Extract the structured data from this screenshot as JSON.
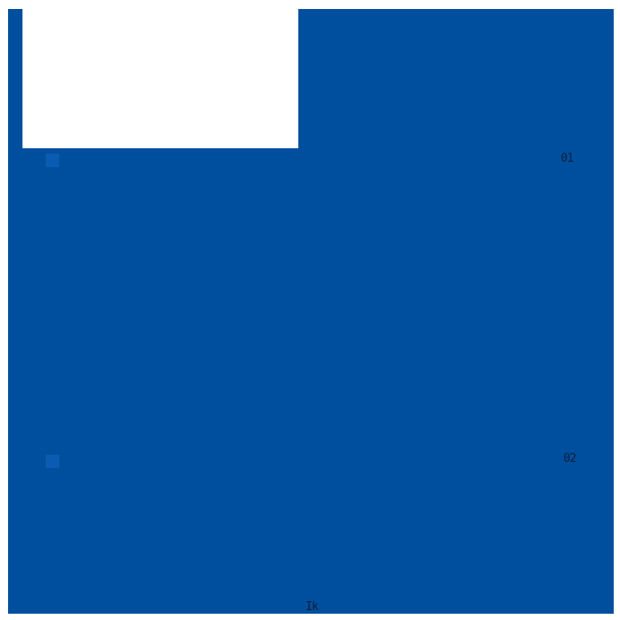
{
  "colors": {
    "canvas-white": "#ffffff",
    "main-blue": "#004f9e",
    "swatch-blue": "#0a5cb2",
    "mark-navy": "#0d1f3c"
  },
  "list": {
    "items": [
      {
        "swatch_color": "#0a5cb2",
        "label": "01"
      },
      {
        "swatch_color": "#0a5cb2",
        "label": "02"
      }
    ]
  },
  "footer": {
    "label": "Ik"
  }
}
